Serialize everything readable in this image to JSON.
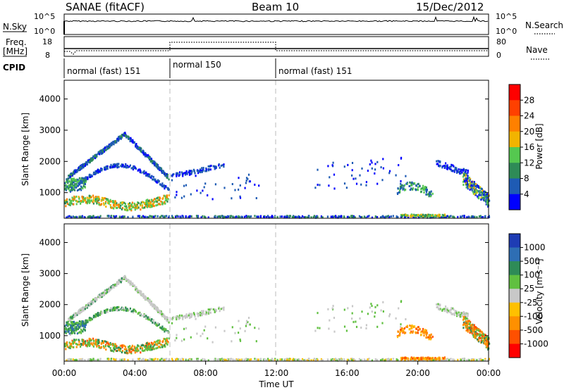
{
  "header": {
    "station": "SANAE (fitACF)",
    "beam": "Beam 10",
    "date": "15/Dec/2012"
  },
  "noise_panel": {
    "left_label": "N.Sky",
    "right_label": "N.Search",
    "left_ticks": [
      "10^5",
      "10^0"
    ],
    "right_ticks": [
      "10^5",
      "10^0"
    ]
  },
  "freq_panel": {
    "left_label_1": "Freq.",
    "left_label_2": "[MHz]",
    "right_label": "Nave",
    "left_ticks": [
      "18",
      "8"
    ],
    "right_ticks": [
      "80",
      "0"
    ]
  },
  "cpid": {
    "label": "CPID",
    "segments": [
      {
        "name": "normal (fast) 151",
        "start": 0,
        "end": 6
      },
      {
        "name": "normal 150",
        "start": 6,
        "end": 12
      },
      {
        "name": "normal (fast) 151",
        "start": 12,
        "end": 24
      }
    ]
  },
  "time_axis": {
    "label": "Time UT",
    "ticks": [
      "00:00",
      "04:00",
      "08:00",
      "12:00",
      "16:00",
      "20:00",
      "00:00"
    ],
    "range_hours": [
      0,
      24
    ]
  },
  "chart_data": [
    {
      "type": "heatmap",
      "title": "",
      "xlabel": "Time UT",
      "ylabel": "Slant Range [km]",
      "xlim_hours": [
        0,
        24
      ],
      "ylim_km": [
        180,
        4600
      ],
      "yticks": [
        "1000",
        "2000",
        "3000",
        "4000"
      ],
      "colorbar": {
        "label": "Power [dB]",
        "ticks": [
          "4",
          "8",
          "12",
          "16",
          "20",
          "24",
          "28"
        ],
        "colors": [
          "#0000ff",
          "#1e5bb4",
          "#2e8b57",
          "#55c850",
          "#f2b400",
          "#ff8000",
          "#ff4000",
          "#ff0000"
        ]
      }
    },
    {
      "type": "heatmap",
      "title": "",
      "xlabel": "Time UT",
      "ylabel": "Slant Range [km]",
      "xlim_hours": [
        0,
        24
      ],
      "ylim_km": [
        180,
        4600
      ],
      "yticks": [
        "1000",
        "2000",
        "3000",
        "4000"
      ],
      "colorbar": {
        "label": "Velocity [m s⁻¹]",
        "ticks": [
          "1000",
          "500",
          "100",
          "25",
          "-25",
          "-100",
          "-500",
          "-1000"
        ],
        "colors": [
          "#1e3cb4",
          "#2e6eb4",
          "#2e8b57",
          "#60c040",
          "#c8c8c8",
          "#ffc000",
          "#ff9000",
          "#ff5000",
          "#ff0000"
        ]
      }
    }
  ]
}
